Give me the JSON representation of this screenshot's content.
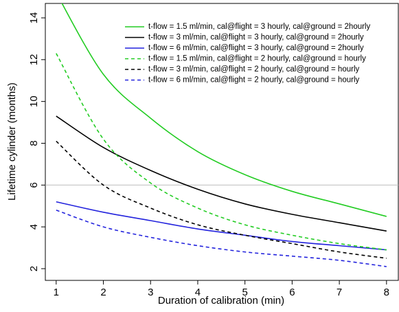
{
  "chart_data": {
    "type": "line",
    "xlabel": "Duration of calibration (min)",
    "ylabel": "Lifetime cylinder (months)",
    "x": [
      1,
      2,
      3,
      4,
      5,
      6,
      7,
      8
    ],
    "series": [
      {
        "name": "t-flow = 1.5 ml/min, cal@flight = 3 hourly, cal@ground = 2hourly",
        "color": "#22cc22",
        "dash": false,
        "values": [
          15.2,
          11.3,
          9.2,
          7.6,
          6.5,
          5.7,
          5.1,
          4.5
        ]
      },
      {
        "name": "t-flow = 3 ml/min, cal@flight = 3 hourly, cal@ground = 2hourly",
        "color": "#000000",
        "dash": false,
        "values": [
          9.3,
          7.8,
          6.7,
          5.8,
          5.1,
          4.6,
          4.2,
          3.8
        ]
      },
      {
        "name": "t-flow = 6 ml/min, cal@flight = 3 hourly, cal@ground = 2hourly",
        "color": "#2222dd",
        "dash": false,
        "values": [
          5.2,
          4.7,
          4.3,
          3.9,
          3.6,
          3.3,
          3.1,
          2.9
        ]
      },
      {
        "name": "t-flow = 1.5 ml/min, cal@flight = 2 hourly, cal@ground = hourly",
        "color": "#22cc22",
        "dash": true,
        "values": [
          12.3,
          8.2,
          6.1,
          4.9,
          4.1,
          3.6,
          3.2,
          2.9
        ]
      },
      {
        "name": "t-flow = 3 ml/min, cal@flight = 2 hourly, cal@ground = hourly",
        "color": "#000000",
        "dash": true,
        "values": [
          8.1,
          6.0,
          4.9,
          4.1,
          3.6,
          3.2,
          2.8,
          2.5
        ]
      },
      {
        "name": "t-flow = 6 ml/min, cal@flight = 2 hourly, cal@ground = hourly",
        "color": "#2222dd",
        "dash": true,
        "values": [
          4.8,
          4.0,
          3.5,
          3.1,
          2.8,
          2.6,
          2.4,
          2.1
        ]
      }
    ],
    "xlim": [
      0.77,
      8.25
    ],
    "ylim": [
      1.44,
      14.69
    ],
    "xticks": [
      1,
      2,
      3,
      4,
      5,
      6,
      7,
      8
    ],
    "yticks": [
      2,
      4,
      6,
      8,
      10,
      12,
      14
    ],
    "hline": 6,
    "legend": "top-right"
  }
}
